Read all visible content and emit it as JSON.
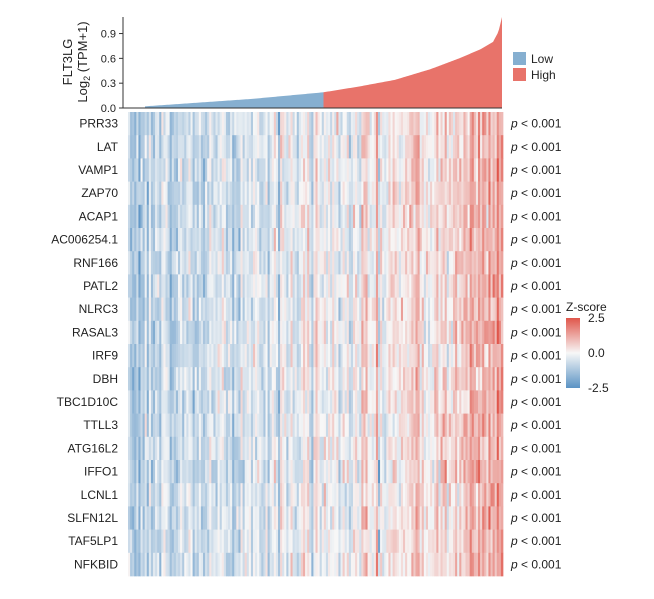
{
  "chart_data": {
    "type": "heatmap",
    "top_panel": {
      "type": "area",
      "ylabel_line1": "FLT3LG",
      "ylabel_line2_base": "Log",
      "ylabel_line2_sub": "2",
      "ylabel_line2_rest": " (TPM+1)",
      "yticks": [
        "0.0",
        "0.3",
        "0.6",
        "0.9"
      ],
      "ytick_values": [
        0.0,
        0.3,
        0.6,
        0.9
      ],
      "ylim": [
        0,
        1.1
      ],
      "curve_profile": [
        [
          0.0,
          0.02
        ],
        [
          0.1,
          0.05
        ],
        [
          0.2,
          0.08
        ],
        [
          0.3,
          0.11
        ],
        [
          0.4,
          0.15
        ],
        [
          0.5,
          0.19
        ],
        [
          0.6,
          0.26
        ],
        [
          0.7,
          0.34
        ],
        [
          0.8,
          0.47
        ],
        [
          0.88,
          0.6
        ],
        [
          0.94,
          0.71
        ],
        [
          0.975,
          0.8
        ],
        [
          0.99,
          0.92
        ],
        [
          1.0,
          1.1
        ]
      ],
      "low_high_split_fraction": 0.5
    },
    "legend_groups": [
      {
        "name": "Low",
        "color": "#86AFD0"
      },
      {
        "name": "High",
        "color": "#E8736A"
      }
    ],
    "rows": [
      "PRR33",
      "LAT",
      "VAMP1",
      "ZAP70",
      "ACAP1",
      "AC006254.1",
      "RNF166",
      "PATL2",
      "NLRC3",
      "RASAL3",
      "IRF9",
      "DBH",
      "TBC1D10C",
      "TTLL3",
      "ATG16L2",
      "IFFO1",
      "LCNL1",
      "SLFN12L",
      "TAF5LP1",
      "NFKBID"
    ],
    "p_value_prefix": "p",
    "p_value_suffix": " < 0.001",
    "n_columns": 180,
    "color_scale": {
      "title": "Z-score",
      "min": -2.5,
      "mid": 0.0,
      "max": 2.5,
      "tick_labels": [
        "2.5",
        "0.0",
        "-2.5"
      ],
      "colors": {
        "low": "#5B93C4",
        "mid": "#F7F7F7",
        "high": "#E0564B"
      }
    }
  }
}
